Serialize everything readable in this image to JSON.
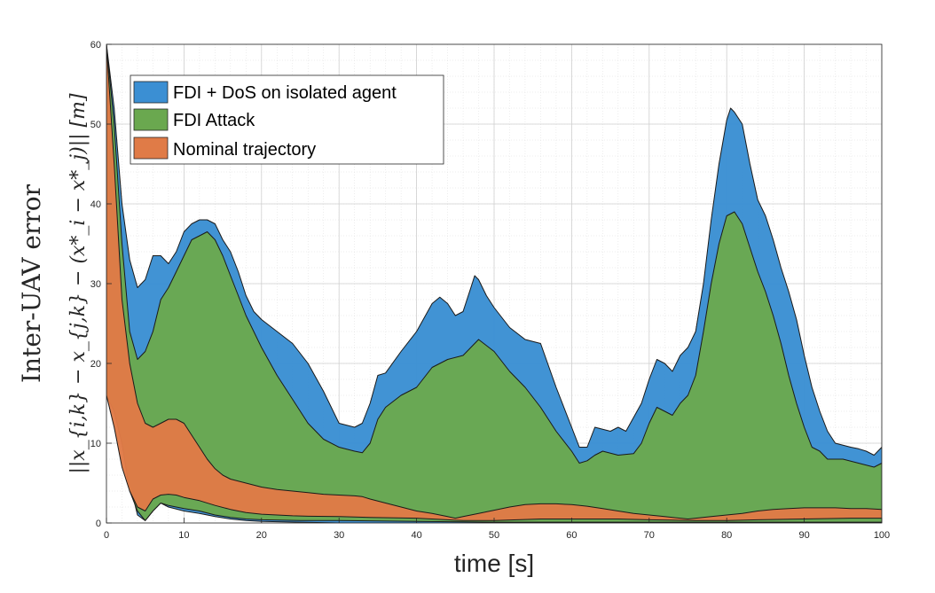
{
  "chart_data": {
    "type": "area",
    "xlabel": "time [s]",
    "ylabel_line1": "Inter-UAV error",
    "ylabel_line2": "||x_{i,k} − x_{j,k} − (x*_i − x*_j)|| [m]",
    "xlim": [
      0,
      100
    ],
    "ylim": [
      0,
      60
    ],
    "xticks": [
      0,
      10,
      20,
      30,
      40,
      50,
      60,
      70,
      80,
      90,
      100
    ],
    "yticks": [
      0,
      10,
      20,
      30,
      40,
      50,
      60
    ],
    "grid": "on",
    "legend_location": "top-left",
    "series": [
      {
        "name": "FDI + DoS on isolated agent",
        "color": "#3b8fd3",
        "upper": [
          [
            0,
            60
          ],
          [
            1,
            52
          ],
          [
            2,
            40
          ],
          [
            3,
            33
          ],
          [
            4,
            29.5
          ],
          [
            5,
            30.5
          ],
          [
            6,
            33.5
          ],
          [
            7,
            33.5
          ],
          [
            8,
            32.5
          ],
          [
            9,
            34
          ],
          [
            10,
            36.5
          ],
          [
            11,
            37.5
          ],
          [
            12,
            38
          ],
          [
            13,
            38
          ],
          [
            14,
            37.5
          ],
          [
            15,
            35.5
          ],
          [
            16,
            34
          ],
          [
            17,
            31.5
          ],
          [
            18,
            28.5
          ],
          [
            19,
            26.5
          ],
          [
            20,
            25.5
          ],
          [
            22,
            24
          ],
          [
            24,
            22.5
          ],
          [
            26,
            20
          ],
          [
            28,
            16.5
          ],
          [
            30,
            12.5
          ],
          [
            32,
            12
          ],
          [
            33,
            12.5
          ],
          [
            34,
            15
          ],
          [
            35,
            18.5
          ],
          [
            36,
            18.8
          ],
          [
            38,
            21.5
          ],
          [
            40,
            24
          ],
          [
            42,
            27.5
          ],
          [
            43,
            28.3
          ],
          [
            44,
            27.5
          ],
          [
            45,
            26
          ],
          [
            46,
            26.5
          ],
          [
            47,
            29.5
          ],
          [
            47.5,
            31
          ],
          [
            48,
            30.5
          ],
          [
            49,
            28.5
          ],
          [
            50,
            27
          ],
          [
            52,
            24.5
          ],
          [
            54,
            23
          ],
          [
            56,
            22.5
          ],
          [
            58,
            17
          ],
          [
            60,
            12
          ],
          [
            61,
            9.5
          ],
          [
            62,
            9.5
          ],
          [
            63,
            12
          ],
          [
            65,
            11.5
          ],
          [
            66,
            12
          ],
          [
            67,
            11.5
          ],
          [
            69,
            15
          ],
          [
            70,
            18
          ],
          [
            71,
            20.5
          ],
          [
            72,
            20
          ],
          [
            73,
            19
          ],
          [
            74,
            21
          ],
          [
            75,
            22
          ],
          [
            76,
            24
          ],
          [
            77,
            30
          ],
          [
            78,
            38
          ],
          [
            79,
            45
          ],
          [
            80,
            50.5
          ],
          [
            80.5,
            52
          ],
          [
            81,
            51.5
          ],
          [
            82,
            50
          ],
          [
            83,
            45
          ],
          [
            84,
            40.5
          ],
          [
            85,
            38.5
          ],
          [
            86,
            35.5
          ],
          [
            87,
            32
          ],
          [
            88,
            29
          ],
          [
            89,
            25.5
          ],
          [
            90,
            21
          ],
          [
            91,
            17
          ],
          [
            92,
            14
          ],
          [
            93,
            11.5
          ],
          [
            94,
            10
          ],
          [
            96,
            9.5
          ],
          [
            97,
            9.3
          ],
          [
            98,
            9
          ],
          [
            99,
            8.5
          ],
          [
            100,
            9.5
          ]
        ],
        "lower": [
          [
            0,
            16
          ],
          [
            1,
            14
          ],
          [
            2,
            10
          ],
          [
            3,
            5
          ],
          [
            4,
            1
          ],
          [
            5,
            0.3
          ],
          [
            6,
            1.5
          ],
          [
            7,
            2.5
          ],
          [
            8,
            2
          ],
          [
            10,
            1.5
          ],
          [
            12,
            1.2
          ],
          [
            14,
            0.8
          ],
          [
            16,
            0.5
          ],
          [
            18,
            0.3
          ],
          [
            20,
            0.2
          ],
          [
            25,
            0.1
          ],
          [
            30,
            0
          ],
          [
            40,
            0
          ],
          [
            50,
            0
          ],
          [
            60,
            0
          ],
          [
            70,
            0
          ],
          [
            80,
            0
          ],
          [
            90,
            0
          ],
          [
            100,
            0
          ]
        ]
      },
      {
        "name": "FDI Attack",
        "color": "#6aa84f",
        "upper": [
          [
            0,
            60
          ],
          [
            1,
            50
          ],
          [
            2,
            35
          ],
          [
            3,
            24
          ],
          [
            4,
            20.5
          ],
          [
            5,
            21.5
          ],
          [
            6,
            24
          ],
          [
            7,
            28
          ],
          [
            8,
            29.5
          ],
          [
            9,
            31.5
          ],
          [
            10,
            33.5
          ],
          [
            11,
            35.5
          ],
          [
            12,
            36
          ],
          [
            13,
            36.5
          ],
          [
            14,
            35.5
          ],
          [
            15,
            33.5
          ],
          [
            16,
            31
          ],
          [
            17,
            28.5
          ],
          [
            18,
            26
          ],
          [
            20,
            22
          ],
          [
            22,
            18.5
          ],
          [
            24,
            15.5
          ],
          [
            26,
            12.5
          ],
          [
            28,
            10.5
          ],
          [
            30,
            9.5
          ],
          [
            32,
            9
          ],
          [
            33,
            8.8
          ],
          [
            34,
            10
          ],
          [
            35,
            13
          ],
          [
            36,
            14.5
          ],
          [
            38,
            16
          ],
          [
            40,
            17
          ],
          [
            42,
            19.5
          ],
          [
            44,
            20.5
          ],
          [
            46,
            21
          ],
          [
            48,
            23
          ],
          [
            50,
            21.5
          ],
          [
            52,
            19
          ],
          [
            54,
            17
          ],
          [
            56,
            14.5
          ],
          [
            58,
            11.5
          ],
          [
            60,
            9
          ],
          [
            61,
            7.5
          ],
          [
            62,
            7.8
          ],
          [
            63,
            8.5
          ],
          [
            64,
            9
          ],
          [
            66,
            8.5
          ],
          [
            68,
            8.7
          ],
          [
            69,
            10
          ],
          [
            70,
            12.5
          ],
          [
            71,
            14.5
          ],
          [
            72,
            14
          ],
          [
            73,
            13.5
          ],
          [
            74,
            15
          ],
          [
            75,
            16
          ],
          [
            76,
            18.5
          ],
          [
            77,
            24
          ],
          [
            78,
            30
          ],
          [
            79,
            35
          ],
          [
            80,
            38.5
          ],
          [
            81,
            39
          ],
          [
            82,
            37.5
          ],
          [
            83,
            34.5
          ],
          [
            84,
            31.5
          ],
          [
            85,
            29
          ],
          [
            86,
            26
          ],
          [
            87,
            22.5
          ],
          [
            88,
            18.5
          ],
          [
            89,
            15
          ],
          [
            90,
            12
          ],
          [
            91,
            9.5
          ],
          [
            92,
            9
          ],
          [
            93,
            8
          ],
          [
            95,
            8
          ],
          [
            97,
            7.5
          ],
          [
            99,
            7
          ],
          [
            100,
            7.5
          ]
        ],
        "lower": [
          [
            0,
            16
          ],
          [
            1,
            14
          ],
          [
            2,
            10
          ],
          [
            3,
            4
          ],
          [
            4,
            1.5
          ],
          [
            5,
            0.3
          ],
          [
            6,
            1.5
          ],
          [
            7,
            2.5
          ],
          [
            8,
            2.2
          ],
          [
            10,
            1.8
          ],
          [
            12,
            1.5
          ],
          [
            14,
            1
          ],
          [
            16,
            0.7
          ],
          [
            18,
            0.5
          ],
          [
            20,
            0.4
          ],
          [
            25,
            0.3
          ],
          [
            30,
            0.3
          ],
          [
            40,
            0.2
          ],
          [
            50,
            0.1
          ],
          [
            60,
            0.1
          ],
          [
            70,
            0.1
          ],
          [
            80,
            0.1
          ],
          [
            90,
            0.1
          ],
          [
            100,
            0.1
          ]
        ]
      },
      {
        "name": "Nominal trajectory",
        "color": "#e07b47",
        "upper": [
          [
            0,
            60
          ],
          [
            1,
            45
          ],
          [
            2,
            28
          ],
          [
            3,
            20
          ],
          [
            4,
            15
          ],
          [
            5,
            12.5
          ],
          [
            6,
            12
          ],
          [
            7,
            12.5
          ],
          [
            8,
            13
          ],
          [
            9,
            13
          ],
          [
            10,
            12.5
          ],
          [
            11,
            11
          ],
          [
            12,
            9.5
          ],
          [
            13,
            8
          ],
          [
            14,
            6.8
          ],
          [
            15,
            6
          ],
          [
            16,
            5.5
          ],
          [
            18,
            5
          ],
          [
            20,
            4.5
          ],
          [
            22,
            4.2
          ],
          [
            24,
            4
          ],
          [
            26,
            3.8
          ],
          [
            28,
            3.6
          ],
          [
            30,
            3.5
          ],
          [
            32,
            3.4
          ],
          [
            33,
            3.3
          ],
          [
            34,
            3
          ],
          [
            36,
            2.5
          ],
          [
            38,
            2
          ],
          [
            40,
            1.5
          ],
          [
            42,
            1.2
          ],
          [
            44,
            0.8
          ],
          [
            45,
            0.6
          ],
          [
            46,
            0.8
          ],
          [
            48,
            1.2
          ],
          [
            50,
            1.6
          ],
          [
            52,
            2
          ],
          [
            54,
            2.3
          ],
          [
            56,
            2.4
          ],
          [
            58,
            2.4
          ],
          [
            60,
            2.3
          ],
          [
            62,
            2.1
          ],
          [
            64,
            1.8
          ],
          [
            66,
            1.5
          ],
          [
            68,
            1.2
          ],
          [
            70,
            1
          ],
          [
            72,
            0.8
          ],
          [
            74,
            0.6
          ],
          [
            75,
            0.5
          ],
          [
            76,
            0.6
          ],
          [
            78,
            0.8
          ],
          [
            80,
            1
          ],
          [
            82,
            1.2
          ],
          [
            84,
            1.5
          ],
          [
            86,
            1.7
          ],
          [
            88,
            1.8
          ],
          [
            90,
            1.9
          ],
          [
            92,
            1.9
          ],
          [
            94,
            1.9
          ],
          [
            96,
            1.8
          ],
          [
            98,
            1.8
          ],
          [
            100,
            1.7
          ]
        ],
        "lower": [
          [
            0,
            16
          ],
          [
            1,
            12
          ],
          [
            2,
            7
          ],
          [
            3,
            4
          ],
          [
            4,
            2
          ],
          [
            5,
            1.5
          ],
          [
            6,
            3
          ],
          [
            7,
            3.5
          ],
          [
            8,
            3.6
          ],
          [
            9,
            3.5
          ],
          [
            10,
            3.2
          ],
          [
            12,
            2.8
          ],
          [
            14,
            2.2
          ],
          [
            16,
            1.7
          ],
          [
            18,
            1.3
          ],
          [
            20,
            1.1
          ],
          [
            22,
            1
          ],
          [
            24,
            0.9
          ],
          [
            26,
            0.85
          ],
          [
            30,
            0.8
          ],
          [
            34,
            0.7
          ],
          [
            40,
            0.6
          ],
          [
            46,
            0.3
          ],
          [
            50,
            0.3
          ],
          [
            56,
            0.5
          ],
          [
            60,
            0.5
          ],
          [
            66,
            0.5
          ],
          [
            70,
            0.4
          ],
          [
            76,
            0.3
          ],
          [
            80,
            0.3
          ],
          [
            84,
            0.4
          ],
          [
            90,
            0.5
          ],
          [
            96,
            0.6
          ],
          [
            100,
            0.6
          ]
        ]
      }
    ]
  }
}
